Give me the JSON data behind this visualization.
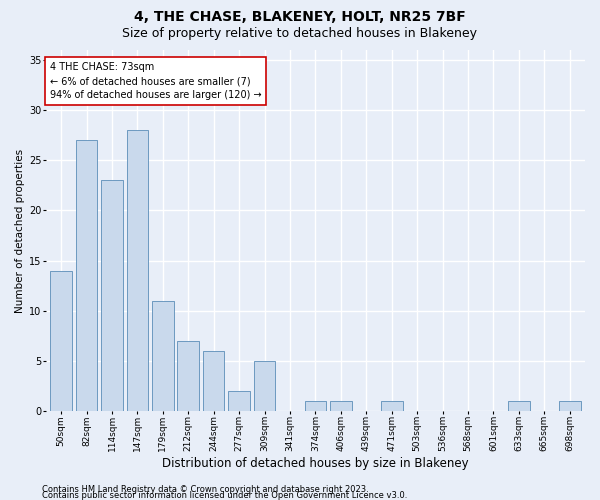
{
  "title1": "4, THE CHASE, BLAKENEY, HOLT, NR25 7BF",
  "title2": "Size of property relative to detached houses in Blakeney",
  "xlabel": "Distribution of detached houses by size in Blakeney",
  "ylabel": "Number of detached properties",
  "footnote1": "Contains HM Land Registry data © Crown copyright and database right 2023.",
  "footnote2": "Contains public sector information licensed under the Open Government Licence v3.0.",
  "annotation_line1": "4 THE CHASE: 73sqm",
  "annotation_line2": "← 6% of detached houses are smaller (7)",
  "annotation_line3": "94% of detached houses are larger (120) →",
  "bar_labels": [
    "50sqm",
    "82sqm",
    "114sqm",
    "147sqm",
    "179sqm",
    "212sqm",
    "244sqm",
    "277sqm",
    "309sqm",
    "341sqm",
    "374sqm",
    "406sqm",
    "439sqm",
    "471sqm",
    "503sqm",
    "536sqm",
    "568sqm",
    "601sqm",
    "633sqm",
    "665sqm",
    "698sqm"
  ],
  "bar_values": [
    14,
    27,
    23,
    28,
    11,
    7,
    6,
    2,
    5,
    0,
    1,
    1,
    0,
    1,
    0,
    0,
    0,
    0,
    1,
    0,
    1
  ],
  "bar_color": "#c9d9ec",
  "bar_edge_color": "#5b8db8",
  "ylim": [
    0,
    36
  ],
  "yticks": [
    0,
    5,
    10,
    15,
    20,
    25,
    30,
    35
  ],
  "background_color": "#e8eef8",
  "plot_background_color": "#e8eef8",
  "grid_color": "#ffffff",
  "annotation_box_color": "#ffffff",
  "annotation_box_edge": "#cc0000",
  "title_fontsize": 10,
  "subtitle_fontsize": 9,
  "tick_fontsize": 6.5,
  "ylabel_fontsize": 7.5,
  "xlabel_fontsize": 8.5,
  "annotation_fontsize": 7,
  "footnote_fontsize": 6
}
